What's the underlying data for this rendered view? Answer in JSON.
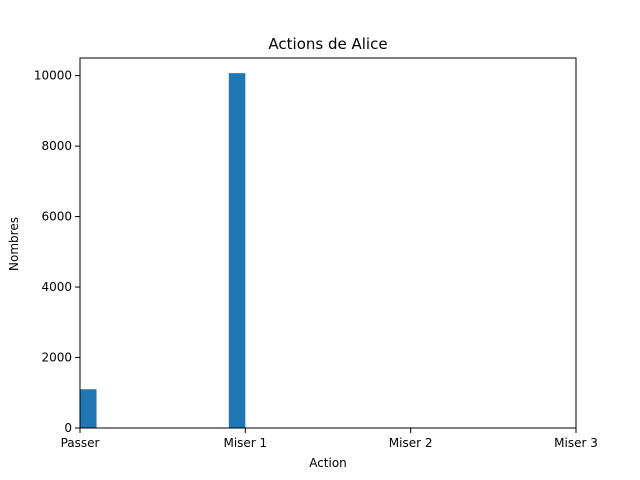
{
  "chart_data": {
    "type": "bar",
    "title": "Actions de Alice",
    "xlabel": "Action",
    "ylabel": "Nombres",
    "x_ticks": [
      {
        "value": 0,
        "label": "Passer"
      },
      {
        "value": 1,
        "label": "Miser 1"
      },
      {
        "value": 2,
        "label": "Miser 2"
      },
      {
        "value": 3,
        "label": "Miser 3"
      }
    ],
    "xlim": [
      0,
      3
    ],
    "ylim": [
      0,
      10500
    ],
    "y_ticks": [
      0,
      2000,
      4000,
      6000,
      8000,
      10000
    ],
    "bars": [
      {
        "x_start": 0.0,
        "x_end": 0.1,
        "value": 1100
      },
      {
        "x_start": 0.9,
        "x_end": 1.0,
        "value": 10070
      }
    ],
    "bar_color": "#1f77b4",
    "grid": false,
    "legend": "none"
  }
}
